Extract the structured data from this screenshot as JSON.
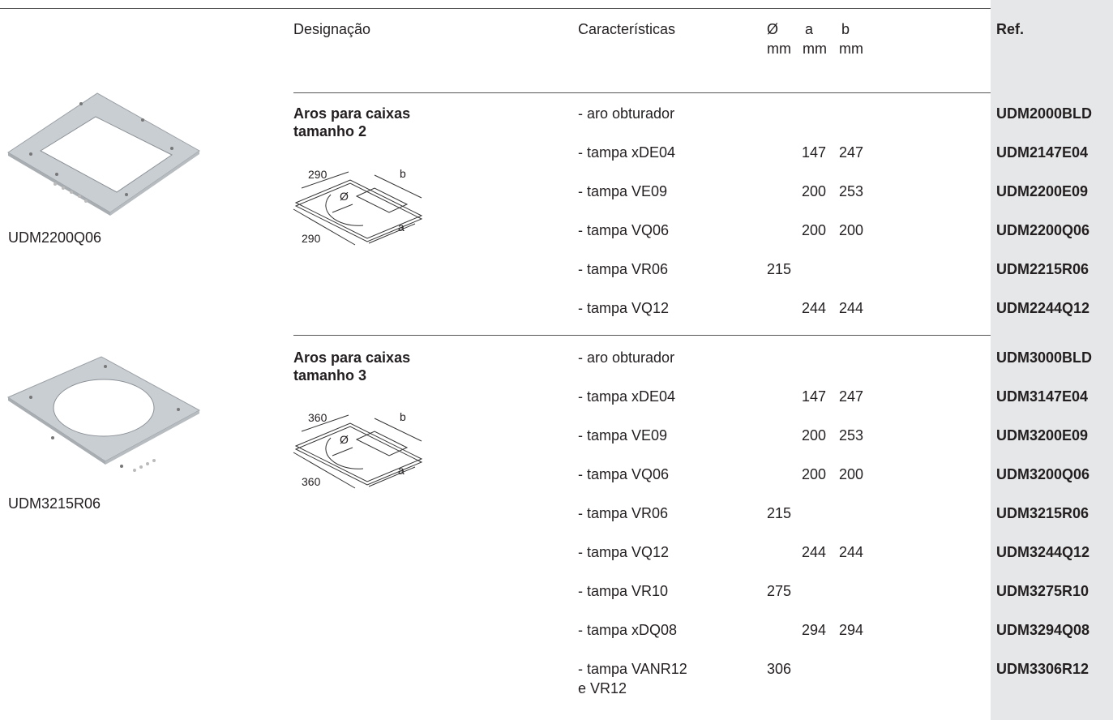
{
  "header": {
    "designation": "Designação",
    "features": "Características",
    "diameter": "Ø",
    "a": "a",
    "b": "b",
    "units": [
      "mm",
      "mm",
      "mm"
    ],
    "ref": "Ref."
  },
  "groups": [
    {
      "image_caption": "UDM2200Q06",
      "designation": [
        "Aros para caixas",
        "tamanho 2"
      ],
      "diagram": {
        "side_top": "290",
        "side_bottom": "290",
        "b": "b",
        "a": "a",
        "diameter": "Ø"
      },
      "rows": [
        {
          "feature": [
            "- aro obturador"
          ],
          "diameter": null,
          "a": null,
          "b": null,
          "ref": "UDM2000BLD"
        },
        {
          "feature": [
            "- tampa xDE04"
          ],
          "diameter": null,
          "a": 147,
          "b": 247,
          "ref": "UDM2147E04"
        },
        {
          "feature": [
            "- tampa VE09"
          ],
          "diameter": null,
          "a": 200,
          "b": 253,
          "ref": "UDM2200E09"
        },
        {
          "feature": [
            "- tampa VQ06"
          ],
          "diameter": null,
          "a": 200,
          "b": 200,
          "ref": "UDM2200Q06"
        },
        {
          "feature": [
            "- tampa VR06"
          ],
          "diameter": 215,
          "a": null,
          "b": null,
          "ref": "UDM2215R06"
        },
        {
          "feature": [
            "- tampa VQ12"
          ],
          "diameter": null,
          "a": 244,
          "b": 244,
          "ref": "UDM2244Q12"
        }
      ]
    },
    {
      "image_caption": "UDM3215R06",
      "designation": [
        "Aros para caixas",
        "tamanho 3"
      ],
      "diagram": {
        "side_top": "360",
        "side_bottom": "360",
        "b": "b",
        "a": "a",
        "diameter": "Ø"
      },
      "rows": [
        {
          "feature": [
            "- aro obturador"
          ],
          "diameter": null,
          "a": null,
          "b": null,
          "ref": "UDM3000BLD"
        },
        {
          "feature": [
            "- tampa xDE04"
          ],
          "diameter": null,
          "a": 147,
          "b": 247,
          "ref": "UDM3147E04"
        },
        {
          "feature": [
            "- tampa VE09"
          ],
          "diameter": null,
          "a": 200,
          "b": 253,
          "ref": "UDM3200E09"
        },
        {
          "feature": [
            "- tampa VQ06"
          ],
          "diameter": null,
          "a": 200,
          "b": 200,
          "ref": "UDM3200Q06"
        },
        {
          "feature": [
            "- tampa VR06"
          ],
          "diameter": 215,
          "a": null,
          "b": null,
          "ref": "UDM3215R06"
        },
        {
          "feature": [
            "- tampa VQ12"
          ],
          "diameter": null,
          "a": 244,
          "b": 244,
          "ref": "UDM3244Q12"
        },
        {
          "feature": [
            "- tampa VR10"
          ],
          "diameter": 275,
          "a": null,
          "b": null,
          "ref": "UDM3275R10"
        },
        {
          "feature": [
            "- tampa xDQ08"
          ],
          "diameter": null,
          "a": 294,
          "b": 294,
          "ref": "UDM3294Q08"
        },
        {
          "feature": [
            "- tampa VANR12",
            " e VR12"
          ],
          "diameter": 306,
          "a": null,
          "b": null,
          "ref": "UDM3306R12"
        }
      ]
    }
  ]
}
